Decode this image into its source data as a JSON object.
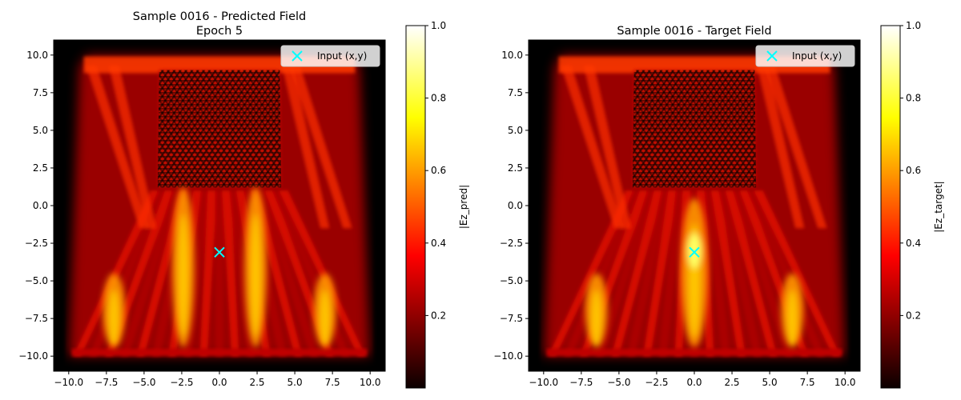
{
  "chart_data": [
    {
      "type": "heatmap",
      "title": "Sample 0016 - Predicted Field",
      "subtitle": "Epoch 5",
      "xlim": [
        -11,
        11
      ],
      "ylim": [
        -11,
        11
      ],
      "xticks": [
        "−10.0",
        "−7.5",
        "−5.0",
        "−2.5",
        "0.0",
        "2.5",
        "5.0",
        "7.5",
        "10.0"
      ],
      "yticks": [
        "−10.0",
        "−7.5",
        "−5.0",
        "−2.5",
        "0.0",
        "2.5",
        "5.0",
        "7.5",
        "10.0"
      ],
      "colormap": "hot",
      "colorbar": {
        "label": "|Ez_pred|",
        "range": [
          0,
          1
        ],
        "ticks": [
          "0.2",
          "0.4",
          "0.6",
          "0.8",
          "1.0"
        ]
      },
      "legend": {
        "placement": "top-right",
        "entries": [
          "Input (x,y)"
        ]
      },
      "input_point": {
        "x": 0.0,
        "y": -3.1,
        "color": "#00ffff"
      },
      "field_features": {
        "lower_beams_x": [
          -7.0,
          -2.4,
          2.4,
          7.0
        ],
        "upper_region_x": [
          -4.0,
          4.0
        ],
        "upper_region_y": [
          1.2,
          9.0
        ]
      }
    },
    {
      "type": "heatmap",
      "title": "Sample 0016 - Target Field",
      "xlim": [
        -11,
        11
      ],
      "ylim": [
        -11,
        11
      ],
      "xticks": [
        "−10.0",
        "−7.5",
        "−5.0",
        "−2.5",
        "0.0",
        "2.5",
        "5.0",
        "7.5",
        "10.0"
      ],
      "yticks": [
        "−10.0",
        "−7.5",
        "−5.0",
        "−2.5",
        "0.0",
        "2.5",
        "5.0",
        "7.5",
        "10.0"
      ],
      "colormap": "hot",
      "colorbar": {
        "label": "|Ez_target|",
        "range": [
          0,
          1
        ],
        "ticks": [
          "0.2",
          "0.4",
          "0.6",
          "0.8",
          "1.0"
        ]
      },
      "legend": {
        "placement": "top-right",
        "entries": [
          "Input (x,y)"
        ]
      },
      "input_point": {
        "x": 0.0,
        "y": -3.1,
        "color": "#00ffff"
      },
      "field_features": {
        "lower_beams_x": [
          -6.5,
          0.0,
          6.5
        ],
        "upper_region_x": [
          -4.0,
          4.0
        ],
        "upper_region_y": [
          1.2,
          9.0
        ]
      }
    }
  ]
}
